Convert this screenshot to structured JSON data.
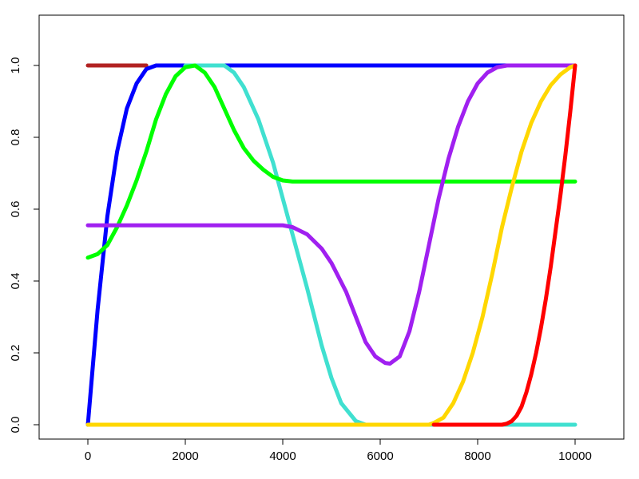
{
  "chart_data": {
    "type": "line",
    "title": "",
    "xlabel": "",
    "ylabel": "",
    "xlim": [
      -1000,
      11000
    ],
    "ylim": [
      -0.04,
      1.14
    ],
    "x_ticks": [
      0,
      2000,
      4000,
      6000,
      8000,
      10000
    ],
    "x_tick_labels": [
      "0",
      "2000",
      "4000",
      "6000",
      "8000",
      "10000"
    ],
    "y_ticks": [
      0.0,
      0.2,
      0.4,
      0.6,
      0.8,
      1.0
    ],
    "y_tick_labels": [
      "0.0",
      "0.2",
      "0.4",
      "0.6",
      "0.8",
      "1.0"
    ],
    "grid": false,
    "series": [
      {
        "name": "brown",
        "color": "#b22222",
        "x": [
          0,
          1200
        ],
        "y": [
          1.0,
          1.0
        ]
      },
      {
        "name": "blue",
        "color": "#0000ff",
        "x": [
          0,
          200,
          400,
          600,
          800,
          1000,
          1200,
          1400,
          2000,
          4000,
          6000,
          8000,
          10000
        ],
        "y": [
          0.0,
          0.32,
          0.58,
          0.76,
          0.88,
          0.95,
          0.99,
          1.0,
          1.0,
          1.0,
          1.0,
          1.0,
          1.0
        ]
      },
      {
        "name": "turquoise",
        "color": "#40e0d0",
        "x": [
          2000,
          2500,
          2800,
          3000,
          3200,
          3500,
          3800,
          4000,
          4200,
          4500,
          4800,
          5000,
          5200,
          5500,
          5700,
          6000,
          7000,
          8000,
          9000,
          10000
        ],
        "y": [
          1.0,
          1.0,
          1.0,
          0.98,
          0.94,
          0.85,
          0.73,
          0.63,
          0.53,
          0.38,
          0.22,
          0.13,
          0.06,
          0.01,
          0.0,
          0.0,
          0.0,
          0.0,
          0.0,
          0.0
        ]
      },
      {
        "name": "green",
        "color": "#00ff00",
        "x": [
          0,
          200,
          400,
          600,
          800,
          1000,
          1200,
          1400,
          1600,
          1800,
          2000,
          2200,
          2400,
          2600,
          2800,
          3000,
          3200,
          3400,
          3600,
          3800,
          4000,
          4200,
          5000,
          6000,
          7000,
          8000,
          9000,
          10000
        ],
        "y": [
          0.465,
          0.475,
          0.5,
          0.55,
          0.61,
          0.68,
          0.76,
          0.85,
          0.92,
          0.97,
          0.995,
          1.0,
          0.98,
          0.94,
          0.88,
          0.82,
          0.77,
          0.735,
          0.71,
          0.69,
          0.68,
          0.677,
          0.677,
          0.677,
          0.677,
          0.677,
          0.677,
          0.677
        ]
      },
      {
        "name": "purple",
        "color": "#a020f0",
        "x": [
          0,
          1000,
          2000,
          3000,
          4000,
          4200,
          4500,
          4800,
          5000,
          5300,
          5500,
          5700,
          5900,
          6100,
          6200,
          6400,
          6600,
          6800,
          7000,
          7200,
          7400,
          7600,
          7800,
          8000,
          8200,
          8400,
          8600,
          9000,
          10000
        ],
        "y": [
          0.555,
          0.555,
          0.555,
          0.555,
          0.555,
          0.55,
          0.53,
          0.49,
          0.45,
          0.37,
          0.3,
          0.23,
          0.19,
          0.172,
          0.17,
          0.19,
          0.26,
          0.37,
          0.5,
          0.63,
          0.74,
          0.83,
          0.9,
          0.95,
          0.98,
          0.995,
          1.0,
          1.0,
          1.0
        ]
      },
      {
        "name": "gold",
        "color": "#ffd700",
        "x": [
          0,
          1000,
          2000,
          3000,
          4000,
          5000,
          6000,
          7000,
          7100,
          7300,
          7500,
          7700,
          7900,
          8100,
          8300,
          8500,
          8700,
          8900,
          9100,
          9300,
          9500,
          9700,
          9900,
          10000
        ],
        "y": [
          0.0,
          0.0,
          0.0,
          0.0,
          0.0,
          0.0,
          0.0,
          0.0,
          0.005,
          0.02,
          0.06,
          0.12,
          0.2,
          0.3,
          0.42,
          0.55,
          0.66,
          0.76,
          0.84,
          0.9,
          0.945,
          0.975,
          0.995,
          1.0
        ]
      },
      {
        "name": "red",
        "color": "#ff0000",
        "x": [
          7100,
          7500,
          8000,
          8500,
          8600,
          8700,
          8800,
          8900,
          9000,
          9100,
          9200,
          9300,
          9400,
          9500,
          9600,
          9700,
          9800,
          9900,
          10000
        ],
        "y": [
          0.0,
          0.0,
          0.0,
          0.0,
          0.003,
          0.01,
          0.025,
          0.05,
          0.09,
          0.14,
          0.2,
          0.27,
          0.35,
          0.44,
          0.54,
          0.64,
          0.75,
          0.87,
          1.0
        ]
      }
    ]
  }
}
